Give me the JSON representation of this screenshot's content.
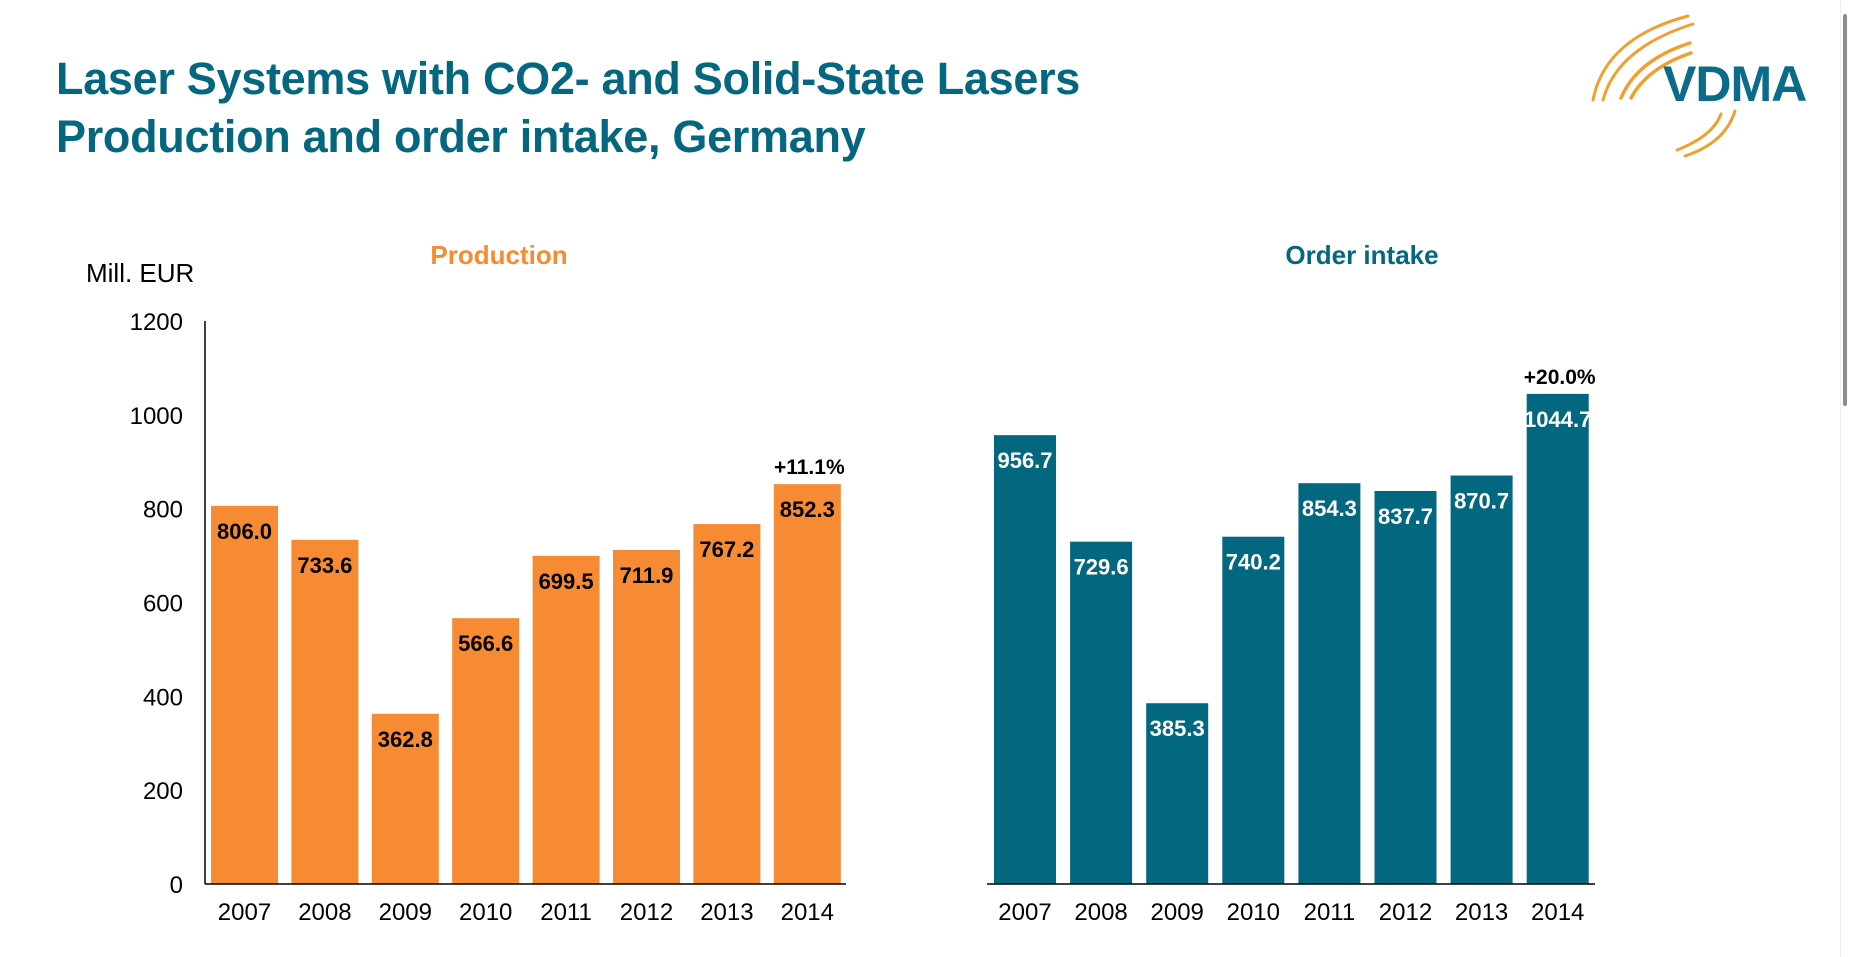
{
  "header": {
    "title_line1": "Laser Systems with CO2- and Solid-State Lasers",
    "title_line2": "Production and order intake, Germany",
    "logo_text": "VDMA",
    "logo_icon": "vdma-arc-logo"
  },
  "colors": {
    "title": "#05677f",
    "production": "#f68b33",
    "order_intake": "#036780",
    "logo_arcs": "#f0a030"
  },
  "chart_data": [
    {
      "type": "bar",
      "title": "Production",
      "ylabel": "Mill. EUR",
      "xlabel": "",
      "categories": [
        "2007",
        "2008",
        "2009",
        "2010",
        "2011",
        "2012",
        "2013",
        "2014"
      ],
      "values": [
        806.0,
        733.6,
        362.8,
        566.6,
        699.5,
        711.9,
        767.2,
        852.3
      ],
      "value_labels": [
        "806.0",
        "733.6",
        "362.8",
        "566.6",
        "699.5",
        "711.9",
        "767.2",
        "852.3"
      ],
      "annotation": {
        "category": "2014",
        "text": "+11.1%"
      },
      "ylim": [
        0,
        1200
      ],
      "yticks": [
        "0",
        "200",
        "400",
        "600",
        "800",
        "1000",
        "1200"
      ],
      "grid": false,
      "color": "#f68b33",
      "label_color": "#000000"
    },
    {
      "type": "bar",
      "title": "Order intake",
      "ylabel": "",
      "xlabel": "",
      "categories": [
        "2007",
        "2008",
        "2009",
        "2010",
        "2011",
        "2012",
        "2013",
        "2014"
      ],
      "values": [
        956.7,
        729.6,
        385.3,
        740.2,
        854.3,
        837.7,
        870.7,
        1044.7
      ],
      "value_labels": [
        "956.7",
        "729.6",
        "385.3",
        "740.2",
        "854.3",
        "837.7",
        "870.7",
        "1044.7"
      ],
      "annotation": {
        "category": "2014",
        "text": "+20.0%"
      },
      "ylim": [
        0,
        1200
      ],
      "grid": false,
      "color": "#036780",
      "label_color": "#ffffff"
    }
  ]
}
